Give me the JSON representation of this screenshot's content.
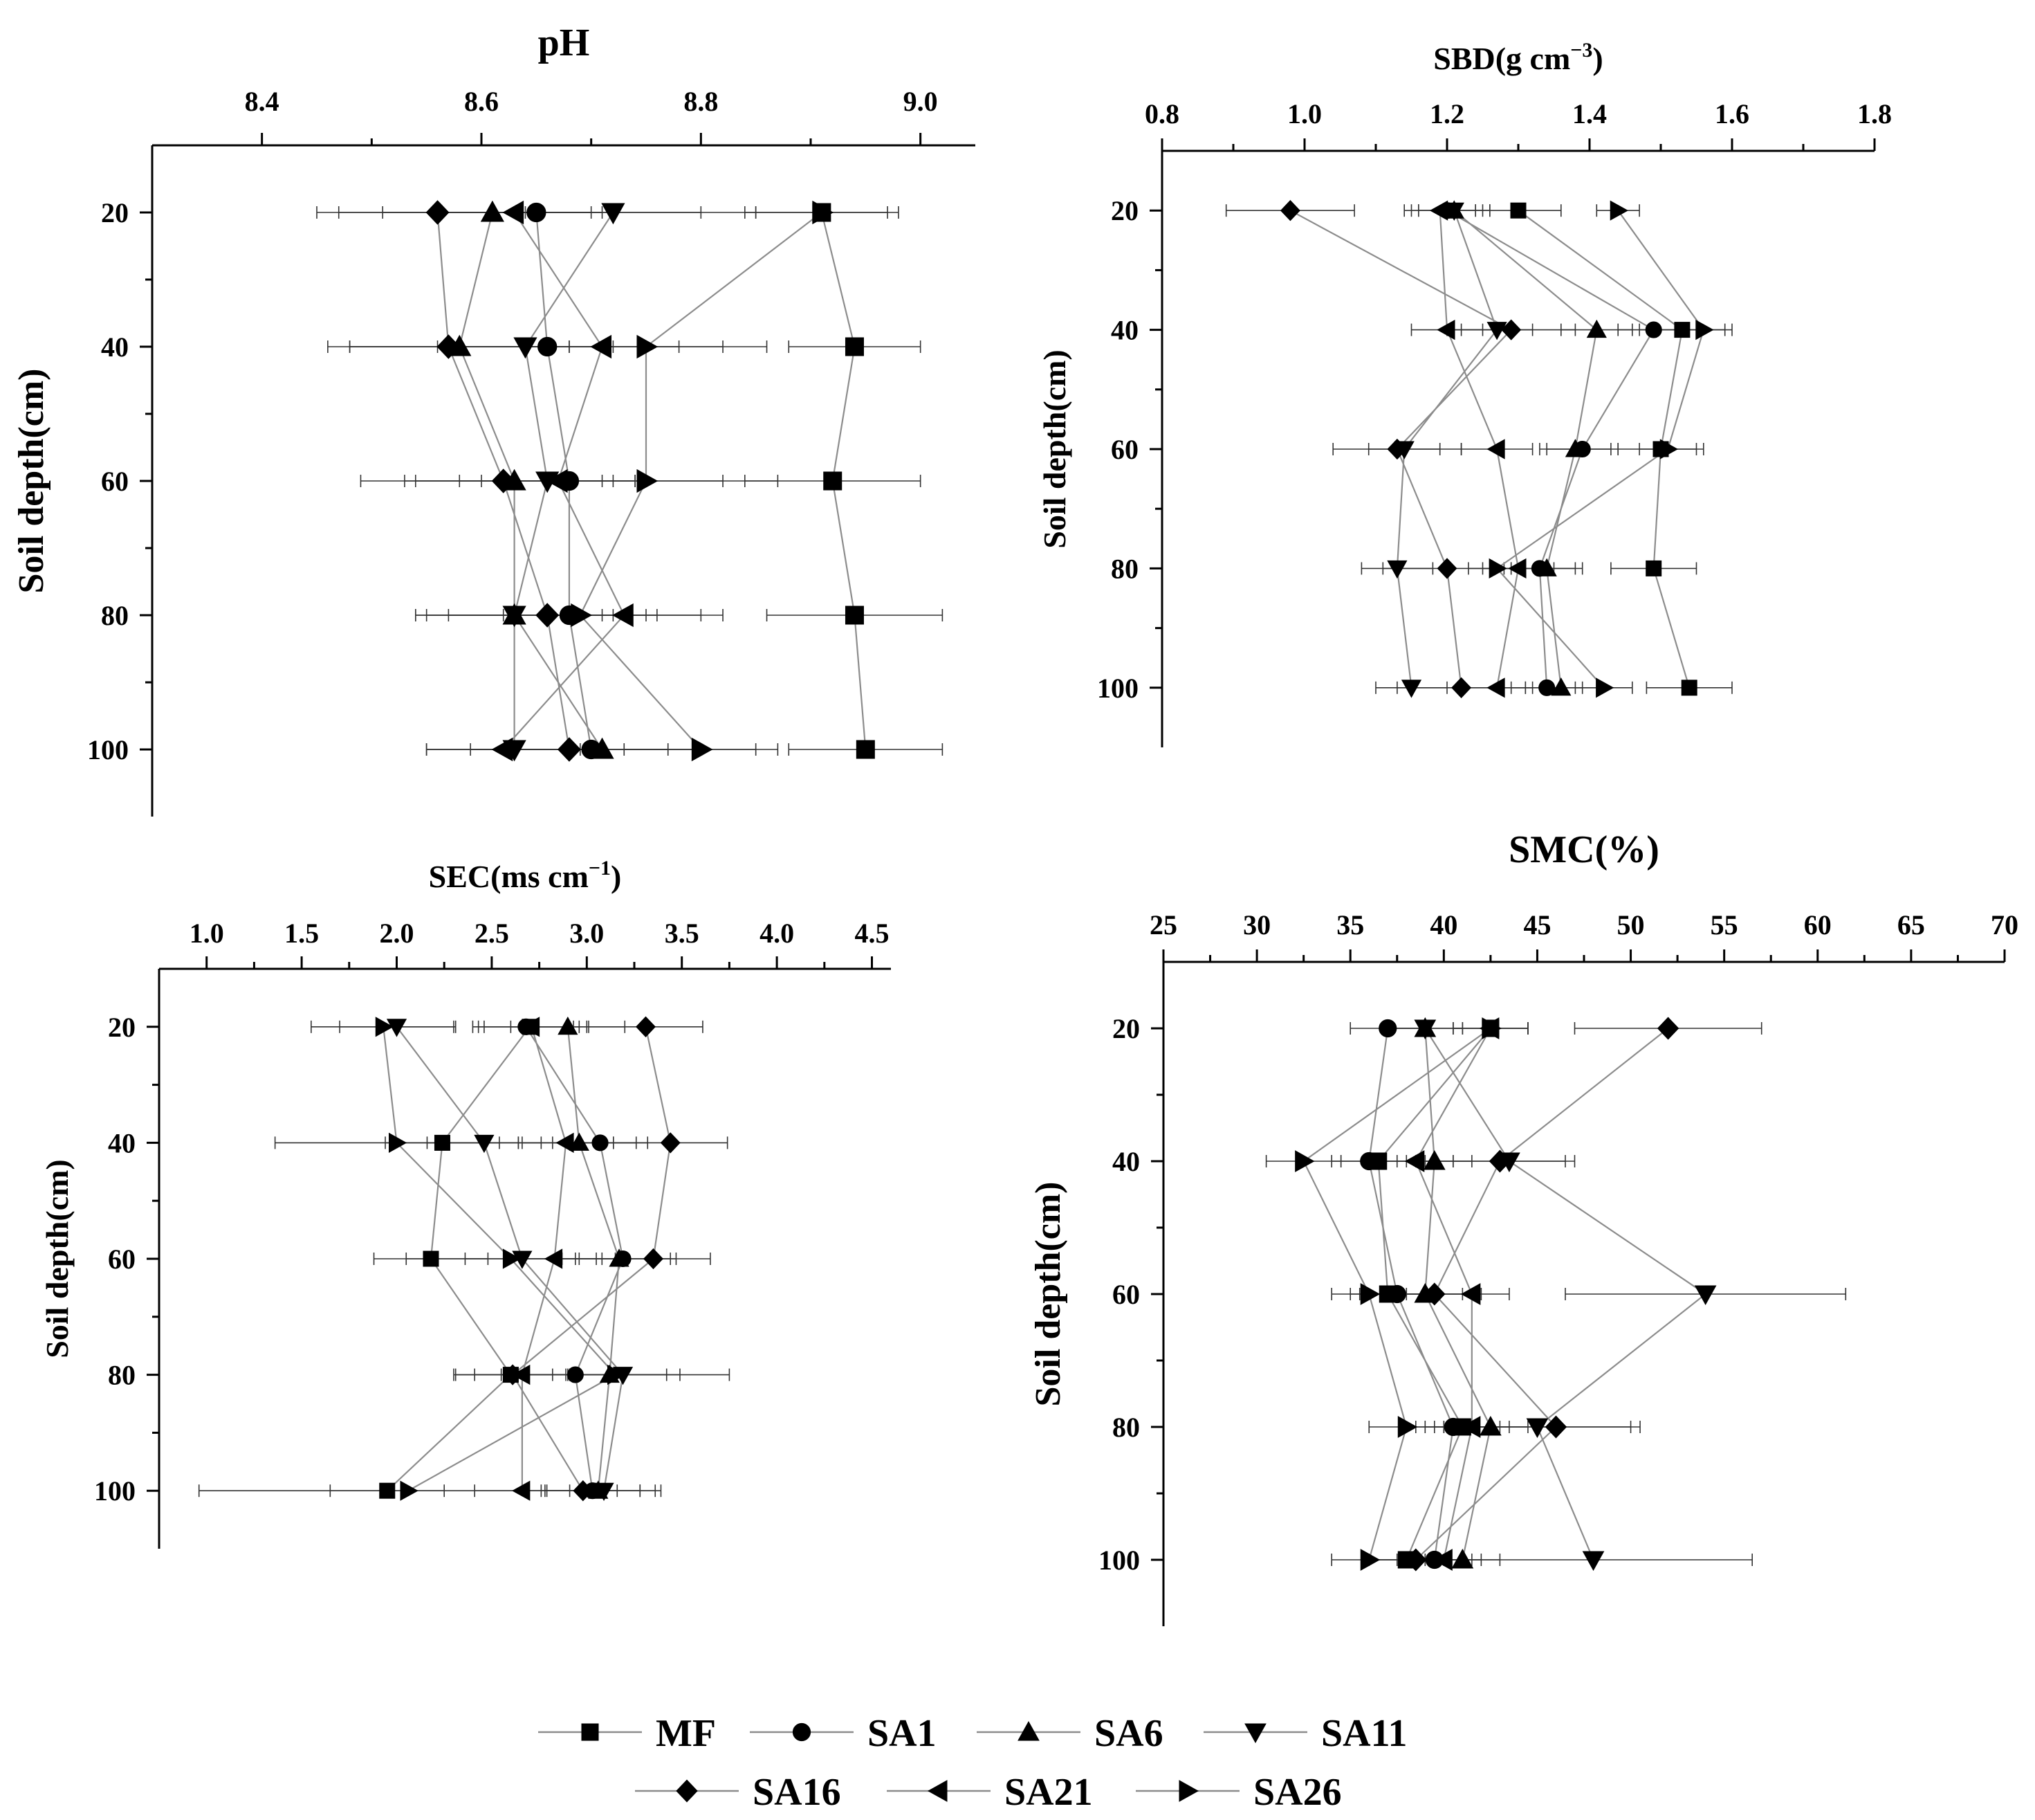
{
  "figure": {
    "legend_position": "bottom-center"
  },
  "legend": [
    {
      "name": "MF",
      "marker": "square"
    },
    {
      "name": "SA1",
      "marker": "circle"
    },
    {
      "name": "SA6",
      "marker": "triangle-up"
    },
    {
      "name": "SA11",
      "marker": "triangle-down"
    },
    {
      "name": "SA16",
      "marker": "diamond"
    },
    {
      "name": "SA21",
      "marker": "triangle-left"
    },
    {
      "name": "SA26",
      "marker": "triangle-right"
    }
  ],
  "colors": {
    "line": "#8c8c8c",
    "marker": "#000000",
    "axis": "#000000"
  },
  "chart_data": [
    {
      "type": "scatter",
      "panel": "pH",
      "title": "pH",
      "title_sup": "",
      "title_tail": "",
      "xlabel": "pH",
      "ylabel": "Soil depth(cm)",
      "xlim": [
        8.3,
        9.05
      ],
      "xticks": [
        8.4,
        8.6,
        8.8,
        9.0
      ],
      "xtick_labels": [
        "8.4",
        "8.6",
        "8.8",
        "9.0"
      ],
      "xminor": [
        8.5,
        8.7,
        8.9
      ],
      "ylim": [
        10,
        110
      ],
      "yticks": [
        20,
        40,
        60,
        80,
        100
      ],
      "ytick_labels": [
        "20",
        "40",
        "60",
        "80",
        "100"
      ],
      "yminor": [
        30,
        50,
        70,
        90
      ],
      "depths": [
        20,
        40,
        60,
        80,
        100
      ],
      "series": [
        {
          "name": "MF",
          "marker": "square",
          "values": [
            8.91,
            8.94,
            8.92,
            8.94,
            8.95
          ],
          "errors": [
            0.06,
            0.06,
            0.08,
            0.08,
            0.07
          ]
        },
        {
          "name": "SA1",
          "marker": "circle",
          "values": [
            8.65,
            8.66,
            8.68,
            8.68,
            8.7
          ],
          "errors": [
            0.2,
            0.2,
            0.19,
            0.14,
            0.15
          ]
        },
        {
          "name": "SA6",
          "marker": "triangle-up",
          "values": [
            8.61,
            8.58,
            8.63,
            8.63,
            8.71
          ],
          "errors": [
            0.1,
            0.1,
            0.09,
            0.09,
            0.09
          ]
        },
        {
          "name": "SA11",
          "marker": "triangle-down",
          "values": [
            8.72,
            8.64,
            8.66,
            8.63,
            8.63
          ],
          "errors": [
            0.08,
            0.08,
            0.08,
            0.08,
            0.08
          ]
        },
        {
          "name": "SA16",
          "marker": "diamond",
          "values": [
            8.56,
            8.57,
            8.62,
            8.66,
            8.68
          ],
          "errors": [
            0.09,
            0.09,
            0.09,
            0.09,
            0.09
          ]
        },
        {
          "name": "SA21",
          "marker": "triangle-left",
          "values": [
            8.63,
            8.71,
            8.67,
            8.73,
            8.62
          ],
          "errors": [
            0.07,
            0.07,
            0.07,
            0.07,
            0.07
          ]
        },
        {
          "name": "SA26",
          "marker": "triangle-right",
          "values": [
            8.91,
            8.75,
            8.75,
            8.69,
            8.8
          ],
          "errors": [
            0.07,
            0.07,
            0.07,
            0.07,
            0.07
          ]
        }
      ]
    },
    {
      "type": "scatter",
      "panel": "SBD",
      "title": "SBD(g cm",
      "title_sup": "−3",
      "title_tail": ")",
      "xlabel": "SBD(g cm−3)",
      "ylabel": "Soil depth(cm)",
      "xlim": [
        0.8,
        1.8
      ],
      "xticks": [
        0.8,
        1.0,
        1.2,
        1.4,
        1.6,
        1.8
      ],
      "xtick_labels": [
        "0.8",
        "1.0",
        "1.2",
        "1.4",
        "1.6",
        "1.8"
      ],
      "xminor": [
        0.9,
        1.1,
        1.3,
        1.5,
        1.7
      ],
      "ylim": [
        10,
        110
      ],
      "yticks": [
        20,
        40,
        60,
        80,
        100
      ],
      "ytick_labels": [
        "20",
        "40",
        "60",
        "80",
        "100"
      ],
      "yminor": [
        30,
        50,
        70,
        90
      ],
      "depths": [
        20,
        40,
        60,
        80,
        100
      ],
      "series": [
        {
          "name": "MF",
          "marker": "square",
          "values": [
            1.3,
            1.53,
            1.5,
            1.49,
            1.54
          ],
          "errors": [
            0.06,
            0.06,
            0.06,
            0.06,
            0.06
          ]
        },
        {
          "name": "SA1",
          "marker": "circle",
          "values": [
            1.2,
            1.49,
            1.39,
            1.33,
            1.34
          ],
          "errors": [
            0.05,
            0.05,
            0.05,
            0.05,
            0.05
          ]
        },
        {
          "name": "SA6",
          "marker": "triangle-up",
          "values": [
            1.21,
            1.41,
            1.38,
            1.34,
            1.36
          ],
          "errors": [
            0.05,
            0.05,
            0.05,
            0.05,
            0.05
          ]
        },
        {
          "name": "SA11",
          "marker": "triangle-down",
          "values": [
            1.21,
            1.27,
            1.14,
            1.13,
            1.15
          ],
          "errors": [
            0.05,
            0.05,
            0.05,
            0.05,
            0.05
          ]
        },
        {
          "name": "SA16",
          "marker": "diamond",
          "values": [
            0.98,
            1.29,
            1.13,
            1.2,
            1.22
          ],
          "errors": [
            0.09,
            0.09,
            0.09,
            0.09,
            0.09
          ]
        },
        {
          "name": "SA21",
          "marker": "triangle-left",
          "values": [
            1.19,
            1.2,
            1.27,
            1.3,
            1.27
          ],
          "errors": [
            0.05,
            0.05,
            0.05,
            0.05,
            0.05
          ]
        },
        {
          "name": "SA26",
          "marker": "triangle-right",
          "values": [
            1.44,
            1.56,
            1.51,
            1.27,
            1.42
          ],
          "errors": [
            0.03,
            0.04,
            0.04,
            0.04,
            0.04
          ]
        }
      ]
    },
    {
      "type": "scatter",
      "panel": "SEC",
      "title": "SEC(ms cm",
      "title_sup": "−1",
      "title_tail": ")",
      "xlabel": "SEC(ms cm−1)",
      "ylabel": "Soil depth(cm)",
      "xlim": [
        0.75,
        4.6
      ],
      "xticks": [
        1.0,
        1.5,
        2.0,
        2.5,
        3.0,
        3.5,
        4.0,
        4.5
      ],
      "xtick_labels": [
        "1.0",
        "1.5",
        "2.0",
        "2.5",
        "3.0",
        "3.5",
        "4.0",
        "4.5"
      ],
      "xminor": [
        1.25,
        1.75,
        2.25,
        2.75,
        3.25,
        3.75,
        4.25
      ],
      "ylim": [
        10,
        110
      ],
      "yticks": [
        20,
        40,
        60,
        80,
        100
      ],
      "ytick_labels": [
        "20",
        "40",
        "60",
        "80",
        "100"
      ],
      "yminor": [
        30,
        50,
        70,
        90
      ],
      "depths": [
        20,
        40,
        60,
        80,
        100
      ],
      "series": [
        {
          "name": "MF",
          "marker": "square",
          "values": [
            2.7,
            2.24,
            2.18,
            2.6,
            1.95
          ],
          "errors": [
            0.3,
            0.3,
            0.3,
            0.3,
            0.3
          ]
        },
        {
          "name": "SA1",
          "marker": "circle",
          "values": [
            2.68,
            3.07,
            3.19,
            2.94,
            3.03
          ],
          "errors": [
            0.25,
            0.25,
            0.25,
            0.25,
            0.25
          ]
        },
        {
          "name": "SA6",
          "marker": "triangle-up",
          "values": [
            2.9,
            2.96,
            3.17,
            3.12,
            3.06
          ],
          "errors": [
            0.3,
            0.3,
            0.3,
            0.3,
            0.3
          ]
        },
        {
          "name": "SA11",
          "marker": "triangle-down",
          "values": [
            2.0,
            2.46,
            2.66,
            3.19,
            3.09
          ],
          "errors": [
            0.3,
            0.3,
            0.3,
            0.3,
            0.3
          ]
        },
        {
          "name": "SA16",
          "marker": "diamond",
          "values": [
            3.31,
            3.44,
            3.35,
            2.61,
            2.98
          ],
          "errors": [
            0.3,
            0.3,
            0.3,
            0.3,
            0.3
          ]
        },
        {
          "name": "SA21",
          "marker": "triangle-left",
          "values": [
            2.71,
            2.89,
            2.83,
            2.66,
            2.66
          ],
          "errors": [
            0.25,
            0.25,
            0.25,
            0.25,
            0.25
          ]
        },
        {
          "name": "SA26",
          "marker": "triangle-right",
          "values": [
            1.93,
            2.0,
            2.6,
            3.15,
            2.06
          ],
          "errors": [
            0.38,
            0.64,
            0.55,
            0.6,
            1.1
          ]
        }
      ]
    },
    {
      "type": "scatter",
      "panel": "SMC",
      "title": "SMC(%)",
      "title_sup": "",
      "title_tail": "",
      "xlabel": "SMC(%)",
      "ylabel": "Soil depth(cm)",
      "xlim": [
        25,
        70
      ],
      "xticks": [
        25,
        30,
        35,
        40,
        45,
        50,
        55,
        60,
        65,
        70
      ],
      "xtick_labels": [
        "25",
        "30",
        "35",
        "40",
        "45",
        "50",
        "55",
        "60",
        "65",
        "70"
      ],
      "xminor": [
        27.5,
        32.5,
        37.5,
        42.5,
        47.5,
        52.5,
        57.5,
        62.5,
        67.5
      ],
      "ylim": [
        10,
        110
      ],
      "yticks": [
        20,
        40,
        60,
        80,
        100
      ],
      "ytick_labels": [
        "20",
        "40",
        "60",
        "80",
        "100"
      ],
      "yminor": [
        30,
        50,
        70,
        90
      ],
      "depths": [
        20,
        40,
        60,
        80,
        100
      ],
      "series": [
        {
          "name": "MF",
          "marker": "square",
          "values": [
            42.5,
            36.5,
            37.0,
            41.0,
            38.0
          ],
          "errors": [
            2.0,
            2.0,
            2.0,
            2.0,
            2.0
          ]
        },
        {
          "name": "SA1",
          "marker": "circle",
          "values": [
            37.0,
            36.0,
            37.5,
            40.5,
            39.5
          ],
          "errors": [
            2.0,
            2.0,
            2.0,
            2.0,
            2.0
          ]
        },
        {
          "name": "SA6",
          "marker": "triangle-up",
          "values": [
            39.0,
            39.5,
            39.0,
            42.5,
            41.0
          ],
          "errors": [
            2.0,
            2.0,
            2.0,
            2.0,
            2.0
          ]
        },
        {
          "name": "SA11",
          "marker": "triangle-down",
          "values": [
            39.0,
            43.5,
            54.0,
            45.0,
            48.0
          ],
          "errors": [
            2.0,
            3.0,
            7.5,
            5.0,
            8.5
          ]
        },
        {
          "name": "SA16",
          "marker": "diamond",
          "values": [
            52.0,
            43.0,
            39.5,
            46.0,
            38.5
          ],
          "errors": [
            5.0,
            4.0,
            2.5,
            4.5,
            2.5
          ]
        },
        {
          "name": "SA21",
          "marker": "triangle-left",
          "values": [
            42.5,
            38.5,
            41.5,
            41.5,
            40.0
          ],
          "errors": [
            2.0,
            2.0,
            2.0,
            2.0,
            2.0
          ]
        },
        {
          "name": "SA26",
          "marker": "triangle-right",
          "values": [
            42.5,
            32.5,
            36.0,
            38.0,
            36.0
          ],
          "errors": [
            2.0,
            2.0,
            2.0,
            2.0,
            2.0
          ]
        }
      ]
    }
  ]
}
